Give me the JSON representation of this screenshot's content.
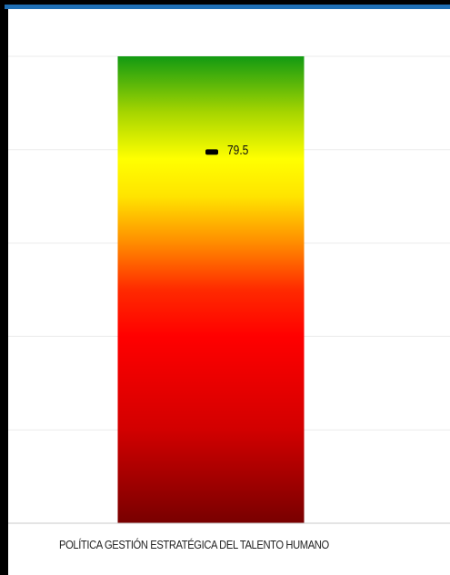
{
  "chart_data": {
    "type": "bar",
    "categories": [
      "POLÍTICA GESTIÓN ESTRATÉGICA DEL TALENTO HUMANO"
    ],
    "values": [
      100
    ],
    "marker": {
      "value": 79.5,
      "label": "79.5"
    },
    "ylim": [
      0,
      100
    ],
    "grid": true,
    "gradient_stops": [
      {
        "value": 100,
        "color": "#129a12"
      },
      {
        "value": 88,
        "color": "#a6d500"
      },
      {
        "value": 78,
        "color": "#ffff00"
      },
      {
        "value": 70,
        "color": "#ffe400"
      },
      {
        "value": 60,
        "color": "#ff8c00"
      },
      {
        "value": 50,
        "color": "#ff2a00"
      },
      {
        "value": 40,
        "color": "#ff0000"
      },
      {
        "value": 20,
        "color": "#d20000"
      },
      {
        "value": 0,
        "color": "#780000"
      }
    ],
    "colors": {
      "grid": "#ebebeb",
      "axis": "#c9c9c9",
      "marker": "#000000",
      "frame_accent": "#1f6fb4"
    }
  }
}
